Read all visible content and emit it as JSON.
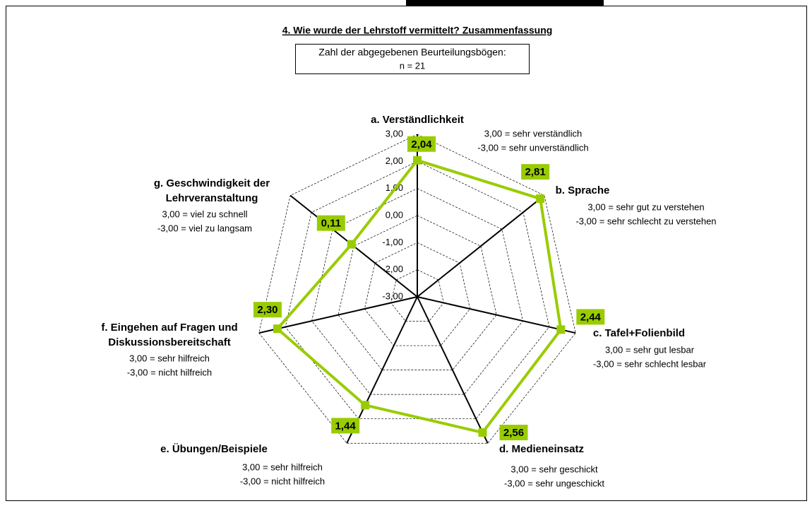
{
  "chart_data": {
    "type": "radar",
    "title": "4. Wie wurde der Lehrstoff vermittelt?  Zusammenfassung",
    "info_box": [
      "Zahl der abgegebenen Beurteilungsbögen:",
      "n = 21"
    ],
    "categories": [
      [
        "a. Verständlichkeit"
      ],
      [
        "b. Sprache"
      ],
      [
        "c. Tafel+Folienbild"
      ],
      [
        "d. Medieneinsatz"
      ],
      [
        "e. Übungen/Beispiele"
      ],
      [
        "f. Eingehen auf Fragen und",
        "Diskussionsbereitschaft"
      ],
      [
        "g. Geschwindigkeit der",
        "Lehrveranstaltung"
      ]
    ],
    "category_notes": [
      [
        "3,00 = sehr verständlich",
        "-3,00 = sehr unverständlich"
      ],
      [
        "3,00 = sehr gut zu verstehen",
        "-3,00 = sehr schlecht zu verstehen"
      ],
      [
        "3,00 = sehr gut lesbar",
        "-3,00 = sehr schlecht lesbar"
      ],
      [
        "3,00 = sehr geschickt",
        "-3,00 = sehr ungeschickt"
      ],
      [
        "3,00 = sehr hilfreich",
        "-3,00 = nicht hilfreich"
      ],
      [
        "3,00 = sehr hilfreich",
        "-3,00 = nicht hilfreich"
      ],
      [
        "3,00 = viel zu schnell",
        "-3,00 = viel zu langsam"
      ]
    ],
    "series": [
      {
        "color": "#99cc00",
        "values": [
          2.04,
          2.81,
          2.44,
          2.56,
          1.44,
          2.3,
          0.11
        ],
        "value_labels": [
          "2,04",
          "2,81",
          "2,44",
          "2,56",
          "1,44",
          "2,30",
          "0,11"
        ]
      }
    ],
    "rlim": [
      -3,
      3
    ],
    "rticks": [
      {
        "value": -3,
        "label": "-3,00"
      },
      {
        "value": -2,
        "label": "-2,00"
      },
      {
        "value": -1,
        "label": "-1,00"
      },
      {
        "value": 0,
        "label": "0,00"
      },
      {
        "value": 1,
        "label": "1,00"
      },
      {
        "value": 2,
        "label": "2,00"
      },
      {
        "value": 3,
        "label": "3,00"
      }
    ],
    "grid": true
  }
}
